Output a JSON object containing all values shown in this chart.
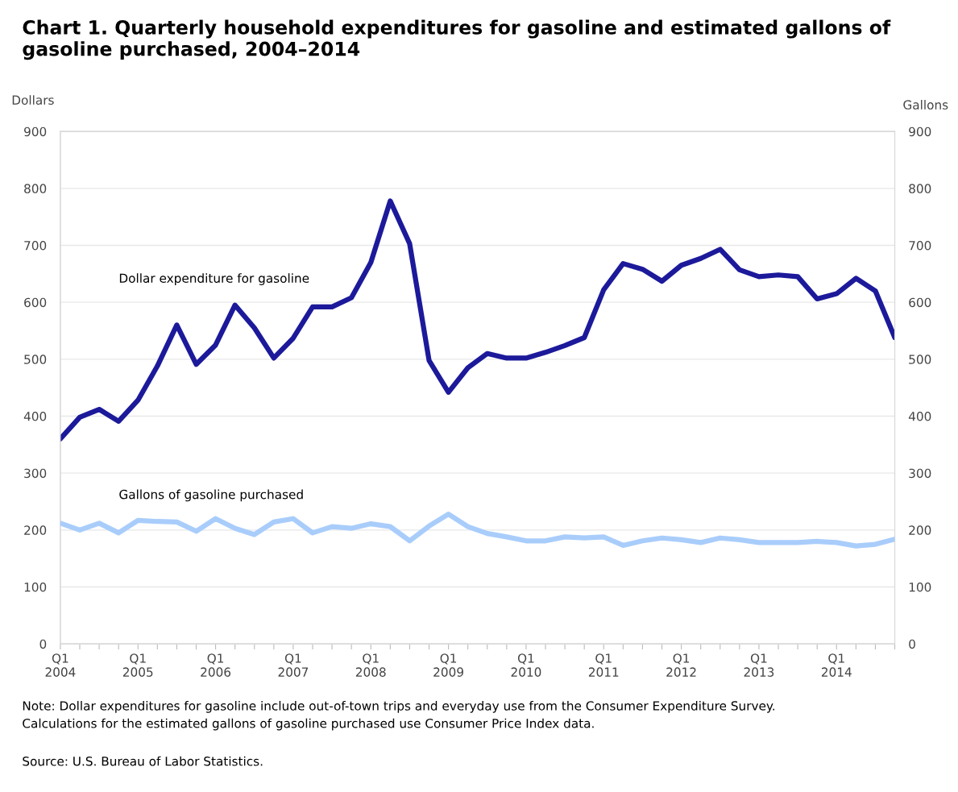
{
  "chart_data": {
    "type": "line",
    "title": "Chart 1. Quarterly household expenditures for gasoline and estimated gallons of gasoline purchased, 2004–2014",
    "ylabel": "Dollars",
    "y2label": "Gallons",
    "categories": [
      "Q1\n2004",
      null,
      null,
      null,
      "Q1\n2005",
      null,
      null,
      null,
      "Q1\n2006",
      null,
      null,
      null,
      "Q1\n2007",
      null,
      null,
      null,
      "Q1\n2008",
      null,
      null,
      null,
      "Q1\n2009",
      null,
      null,
      null,
      "Q1\n2010",
      null,
      null,
      null,
      "Q1\n2011",
      null,
      null,
      null,
      "Q1\n2012",
      null,
      null,
      null,
      "Q1\n2013",
      null,
      null,
      null,
      "Q1\n2014",
      null,
      null,
      null
    ],
    "series": [
      {
        "name": "Dollar expenditure for gasoline",
        "color": "#1c1a9a",
        "values": [
          360,
          398,
          412,
          391,
          428,
          488,
          560,
          491,
          525,
          595,
          555,
          502,
          537,
          592,
          592,
          608,
          670,
          778,
          703,
          498,
          442,
          485,
          510,
          502,
          502,
          512,
          524,
          538,
          622,
          668,
          658,
          637,
          665,
          677,
          693,
          657,
          645,
          648,
          645,
          606,
          615,
          642,
          620,
          538
        ]
      },
      {
        "name": "Gallons of gasoline purchased",
        "color": "#a9cdfb",
        "axis": "y2",
        "values": [
          212,
          200,
          212,
          195,
          217,
          215,
          214,
          198,
          220,
          203,
          192,
          214,
          220,
          195,
          206,
          203,
          211,
          206,
          181,
          207,
          228,
          206,
          194,
          188,
          181,
          181,
          188,
          186,
          188,
          173,
          181,
          186,
          183,
          178,
          186,
          183,
          178,
          178,
          178,
          180,
          178,
          172,
          175,
          184
        ]
      }
    ],
    "ylim": [
      0,
      900
    ],
    "yticks": [
      0,
      100,
      200,
      300,
      400,
      500,
      600,
      700,
      800,
      900
    ],
    "y2lim": [
      0,
      900
    ],
    "y2ticks": [
      0,
      100,
      200,
      300,
      400,
      500,
      600,
      700,
      800,
      900
    ],
    "grid": "y",
    "legend": false,
    "marker": "none",
    "line_style": "solid",
    "annotations": [
      "Note: Dollar expenditures for gasoline include out-of-town trips and everyday use from the Consumer Expenditure Survey.\nCalculations for the estimated gallons of gasoline purchased use Consumer Price Index data.",
      "Source: U.S. Bureau of Labor Statistics."
    ]
  }
}
